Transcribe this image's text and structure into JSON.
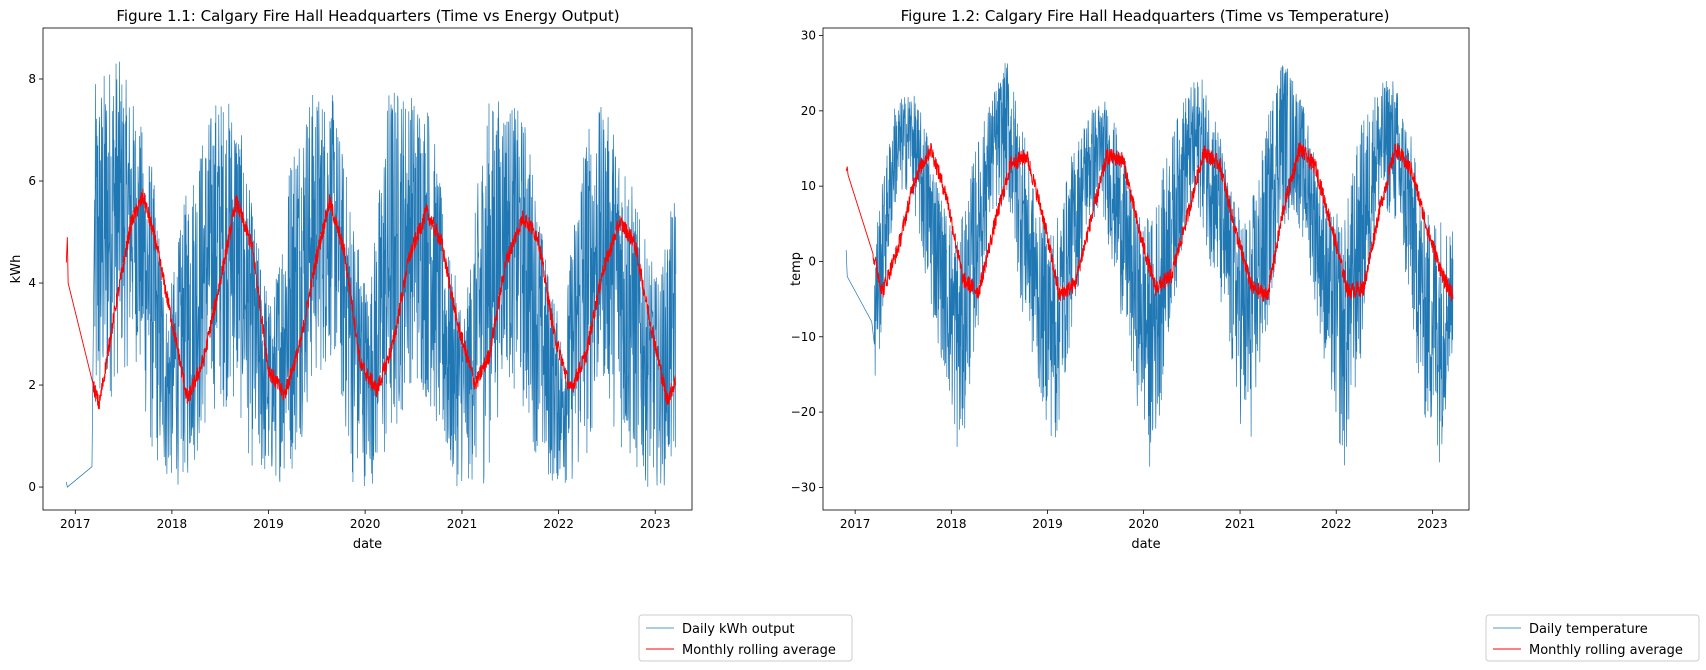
{
  "chart_data": [
    {
      "type": "line",
      "title": "Figure 1.1: Calgary Fire Hall Headquarters (Time vs Energy Output)",
      "xlabel": "date",
      "ylabel": "kWh",
      "x_ticks": [
        "2017",
        "2018",
        "2019",
        "2020",
        "2021",
        "2022",
        "2023"
      ],
      "y_ticks": [
        "0",
        "2",
        "4",
        "6",
        "8"
      ],
      "xlim": [
        "2016-09-01",
        "2023-05-20"
      ],
      "ylim": [
        -0.45,
        9.0
      ],
      "grid": false,
      "legend_placement": "bottom-right, outside plot",
      "series": [
        {
          "name": "Daily kWh output",
          "color": "#1f77b4",
          "gaps": [
            [
              "2016-12-08",
              "2017-03-05"
            ]
          ],
          "segment_points": [
            [
              "2016-11-28",
              0.1
            ],
            [
              "2016-12-02",
              0.0
            ],
            [
              "2017-03-05",
              0.4
            ]
          ],
          "envelope": {
            "x": [
              "2017-03-15",
              "2017-06-01",
              "2017-08-15",
              "2017-10-15",
              "2017-12-15",
              "2018-03-01",
              "2018-06-15",
              "2018-09-01",
              "2018-11-15",
              "2019-01-15",
              "2019-04-01",
              "2019-06-15",
              "2019-09-01",
              "2019-11-15",
              "2020-01-15",
              "2020-04-01",
              "2020-06-15",
              "2020-09-01",
              "2020-11-15",
              "2021-01-15",
              "2021-04-01",
              "2021-06-15",
              "2021-09-01",
              "2021-11-15",
              "2022-01-15",
              "2022-04-01",
              "2022-06-15",
              "2022-09-01",
              "2022-11-15",
              "2023-01-15",
              "2023-03-20"
            ],
            "low": [
              0.4,
              2.0,
              2.5,
              0.5,
              0.0,
              0.0,
              1.5,
              1.5,
              0.0,
              0.0,
              0.2,
              1.8,
              2.5,
              0.0,
              0.0,
              0.2,
              2.0,
              1.5,
              0.0,
              0.0,
              0.0,
              2.2,
              1.2,
              0.0,
              0.0,
              0.0,
              2.0,
              0.5,
              0.0,
              0.0,
              0.0
            ],
            "high": [
              7.9,
              8.6,
              7.5,
              6.5,
              3.5,
              6.0,
              7.7,
              7.6,
              5.0,
              3.5,
              7.0,
              7.8,
              7.7,
              5.5,
              3.8,
              8.0,
              7.8,
              7.6,
              4.5,
              3.5,
              7.6,
              7.7,
              7.2,
              4.5,
              3.0,
              7.0,
              7.5,
              6.8,
              5.0,
              4.0,
              6.0
            ]
          }
        },
        {
          "name": "Monthly rolling average",
          "color": "#ff0000",
          "x": [
            "2016-11-28",
            "2016-12-02",
            "2016-12-05",
            "2017-03-10",
            "2017-04-01",
            "2017-06-01",
            "2017-08-01",
            "2017-09-15",
            "2017-11-01",
            "2018-01-15",
            "2018-03-01",
            "2018-05-01",
            "2018-07-01",
            "2018-09-01",
            "2018-11-01",
            "2019-01-01",
            "2019-03-01",
            "2019-05-01",
            "2019-07-01",
            "2019-08-20",
            "2019-10-15",
            "2019-12-15",
            "2020-02-15",
            "2020-04-15",
            "2020-06-15",
            "2020-08-20",
            "2020-10-15",
            "2020-12-15",
            "2021-02-20",
            "2021-04-15",
            "2021-06-15",
            "2021-08-20",
            "2021-10-15",
            "2021-12-15",
            "2022-02-15",
            "2022-04-15",
            "2022-06-15",
            "2022-08-20",
            "2022-10-15",
            "2022-12-15",
            "2023-02-15",
            "2023-03-20"
          ],
          "y": [
            4.4,
            4.9,
            4.0,
            2.0,
            1.6,
            3.5,
            5.2,
            5.7,
            4.8,
            2.9,
            1.7,
            2.5,
            4.0,
            5.6,
            4.7,
            2.3,
            1.8,
            2.8,
            4.5,
            5.6,
            4.6,
            2.4,
            1.9,
            2.8,
            4.5,
            5.4,
            4.8,
            3.2,
            2.0,
            2.6,
            4.4,
            5.3,
            4.9,
            3.0,
            1.9,
            2.6,
            4.2,
            5.2,
            4.8,
            3.2,
            1.7,
            2.1
          ]
        }
      ]
    },
    {
      "type": "line",
      "title": "Figure 1.2: Calgary Fire Hall Headquarters (Time vs Temperature)",
      "xlabel": "date",
      "ylabel": "temp",
      "x_ticks": [
        "2017",
        "2018",
        "2019",
        "2020",
        "2021",
        "2022",
        "2023"
      ],
      "y_ticks": [
        "30",
        "20",
        "10",
        "0",
        "−10",
        "−20",
        "−30"
      ],
      "xlim": [
        "2016-09-01",
        "2023-05-20"
      ],
      "ylim": [
        -33.0,
        31.0
      ],
      "grid": false,
      "legend_placement": "bottom-right, outside plot",
      "series": [
        {
          "name": "Daily temperature",
          "color": "#1f77b4",
          "gaps": [
            [
              "2016-12-08",
              "2017-03-05"
            ]
          ],
          "segment_points": [
            [
              "2016-11-28",
              1.5
            ],
            [
              "2016-12-02",
              -2.0
            ],
            [
              "2017-03-05",
              -8.0
            ]
          ],
          "envelope": {
            "x": [
              "2017-03-15",
              "2017-06-01",
              "2017-08-01",
              "2017-10-01",
              "2017-12-01",
              "2018-02-01",
              "2018-04-01",
              "2018-06-01",
              "2018-08-01",
              "2018-10-01",
              "2018-12-01",
              "2019-02-01",
              "2019-04-01",
              "2019-06-01",
              "2019-08-01",
              "2019-10-01",
              "2019-12-01",
              "2020-02-01",
              "2020-04-01",
              "2020-06-01",
              "2020-08-01",
              "2020-10-01",
              "2020-12-01",
              "2021-02-01",
              "2021-04-01",
              "2021-06-01",
              "2021-08-01",
              "2021-10-01",
              "2021-12-01",
              "2022-02-01",
              "2022-04-01",
              "2022-06-01",
              "2022-08-01",
              "2022-10-01",
              "2022-12-01",
              "2023-02-01",
              "2023-03-20"
            ],
            "low": [
              -19,
              7,
              10,
              -5,
              -14,
              -28,
              -12,
              5,
              8,
              -8,
              -18,
              -26,
              -10,
              4,
              6,
              -6,
              -18,
              -29,
              -12,
              3,
              6,
              -4,
              -16,
              -27,
              -14,
              4,
              6,
              -3,
              -17,
              -29,
              -15,
              5,
              6,
              -6,
              -22,
              -27,
              -12
            ],
            "high": [
              4,
              21,
              23,
              18,
              8,
              4,
              15,
              22,
              27,
              18,
              6,
              5,
              14,
              20,
              22,
              17,
              7,
              6,
              15,
              22,
              25,
              20,
              9,
              6,
              16,
              28,
              24,
              17,
              7,
              6,
              18,
              23,
              25,
              19,
              7,
              7,
              4
            ]
          }
        },
        {
          "name": "Monthly rolling average",
          "color": "#ff0000",
          "x": [
            "2016-11-28",
            "2016-12-02",
            "2016-12-05",
            "2017-03-10",
            "2017-04-15",
            "2017-06-15",
            "2017-08-15",
            "2017-10-15",
            "2017-12-15",
            "2018-02-15",
            "2018-04-15",
            "2018-06-15",
            "2018-08-15",
            "2018-10-15",
            "2018-12-15",
            "2019-02-15",
            "2019-04-15",
            "2019-06-15",
            "2019-08-15",
            "2019-10-15",
            "2019-12-15",
            "2020-02-15",
            "2020-04-15",
            "2020-06-15",
            "2020-08-15",
            "2020-10-15",
            "2020-12-15",
            "2021-02-15",
            "2021-04-15",
            "2021-06-15",
            "2021-08-15",
            "2021-10-15",
            "2021-12-15",
            "2022-02-15",
            "2022-04-15",
            "2022-06-15",
            "2022-08-15",
            "2022-10-15",
            "2022-12-15",
            "2023-02-15",
            "2023-03-20"
          ],
          "y": [
            12.0,
            12.6,
            11.5,
            1.0,
            -4.0,
            2.0,
            11.0,
            15.0,
            8.5,
            -2.5,
            -4.0,
            5.0,
            13.0,
            14.0,
            6.0,
            -4.5,
            -3.0,
            5.5,
            14.0,
            13.5,
            4.0,
            -3.5,
            -2.0,
            6.0,
            14.5,
            13.0,
            4.0,
            -3.5,
            -4.5,
            7.0,
            15.0,
            12.5,
            4.5,
            -4.0,
            -3.5,
            7.0,
            15.0,
            12.0,
            4.0,
            -2.5,
            -4.5
          ]
        }
      ]
    }
  ]
}
